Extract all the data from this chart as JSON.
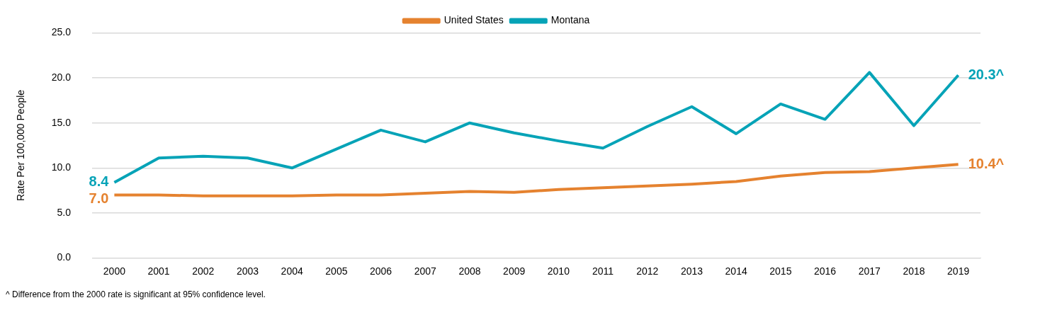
{
  "chart_data": {
    "type": "line",
    "categories": [
      "2000",
      "2001",
      "2002",
      "2003",
      "2004",
      "2005",
      "2006",
      "2007",
      "2008",
      "2009",
      "2010",
      "2011",
      "2012",
      "2013",
      "2014",
      "2015",
      "2016",
      "2017",
      "2018",
      "2019"
    ],
    "series": [
      {
        "name": "United States",
        "color": "#e5822f",
        "values": [
          7.0,
          7.0,
          6.9,
          6.9,
          6.9,
          7.0,
          7.0,
          7.2,
          7.4,
          7.3,
          7.6,
          7.8,
          8.0,
          8.2,
          8.5,
          9.1,
          9.5,
          9.6,
          10.0,
          10.4
        ],
        "value_labels": [
          "7.0",
          null,
          null,
          null,
          null,
          null,
          null,
          null,
          null,
          null,
          null,
          null,
          null,
          null,
          null,
          null,
          null,
          null,
          null,
          "10.4^"
        ]
      },
      {
        "name": "Montana",
        "color": "#06a3b7",
        "values": [
          8.4,
          11.1,
          11.3,
          11.1,
          10.0,
          12.1,
          14.2,
          12.9,
          15.0,
          13.9,
          13.0,
          12.2,
          14.6,
          16.8,
          13.8,
          17.1,
          15.4,
          20.6,
          14.7,
          20.3
        ],
        "value_labels": [
          "8.4",
          null,
          null,
          null,
          null,
          null,
          null,
          null,
          null,
          null,
          null,
          null,
          null,
          null,
          null,
          null,
          null,
          null,
          null,
          "20.3^"
        ]
      }
    ],
    "ylabel": "Rate Per 100,000 People",
    "ylim": [
      0,
      25
    ],
    "yticks": [
      {
        "value": 0,
        "label": "0.0"
      },
      {
        "value": 5,
        "label": "5.0"
      },
      {
        "value": 10,
        "label": "10.0"
      },
      {
        "value": 15,
        "label": "15.0"
      },
      {
        "value": 20,
        "label": "20.0"
      },
      {
        "value": 25,
        "label": "25.0"
      }
    ],
    "grid": "y",
    "legend": "top",
    "marker": "none",
    "line_style": "solid",
    "annotations": [
      "^ Difference from the 2000 rate is significant at 95% confidence level."
    ]
  }
}
